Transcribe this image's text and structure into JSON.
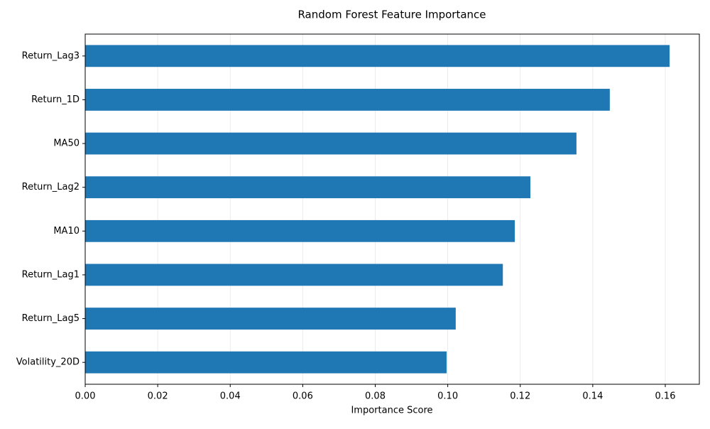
{
  "chart_data": {
    "type": "barh",
    "title": "Random Forest Feature Importance",
    "xlabel": "Importance Score",
    "categories": [
      "Return_Lag3",
      "Return_1D",
      "MA50",
      "Return_Lag2",
      "MA10",
      "Return_Lag1",
      "Return_Lag5",
      "Volatility_20D"
    ],
    "values": [
      0.1612,
      0.1447,
      0.1355,
      0.1228,
      0.1185,
      0.1152,
      0.1022,
      0.0997
    ],
    "color": "#1f77b4",
    "xlim": [
      0,
      0.1694
    ],
    "xticks": [
      {
        "value": 0,
        "label": "0.00"
      },
      {
        "value": 0.02,
        "label": "0.02"
      },
      {
        "value": 0.04,
        "label": "0.04"
      },
      {
        "value": 0.06,
        "label": "0.06"
      },
      {
        "value": 0.08,
        "label": "0.08"
      },
      {
        "value": 0.1,
        "label": "0.10"
      },
      {
        "value": 0.12,
        "label": "0.12"
      },
      {
        "value": 0.14,
        "label": "0.14"
      },
      {
        "value": 0.16,
        "label": "0.16"
      }
    ],
    "grid": true
  }
}
